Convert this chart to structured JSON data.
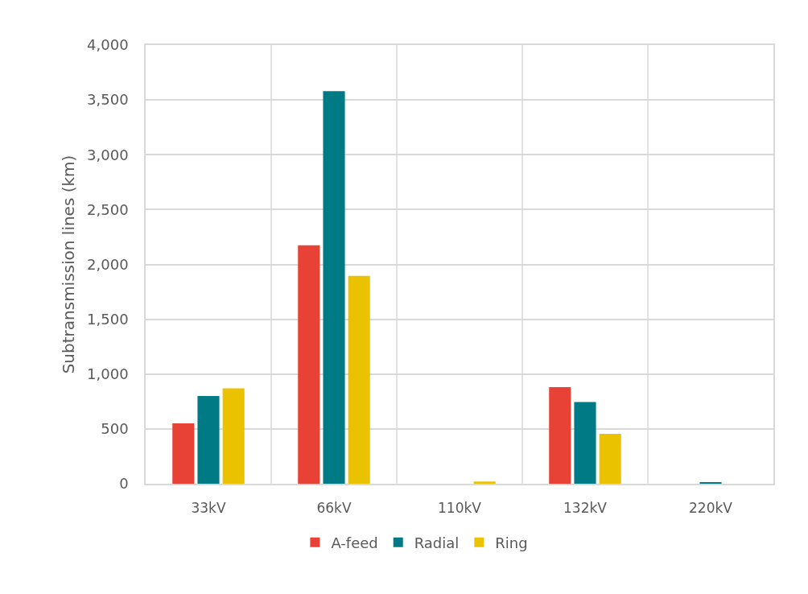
{
  "chart_data": {
    "type": "bar",
    "ylabel": "Subtransmission lines (km)",
    "categories": [
      "33kV",
      "66kV",
      "110kV",
      "132kV",
      "220kV"
    ],
    "series": [
      {
        "name": "A-feed",
        "color": "#e84136",
        "values": [
          550,
          2175,
          null,
          880,
          null
        ]
      },
      {
        "name": "Radial",
        "color": "#007b86",
        "values": [
          800,
          3580,
          null,
          745,
          15
        ]
      },
      {
        "name": "Ring",
        "color": "#ebc200",
        "values": [
          870,
          1895,
          20,
          455,
          null
        ]
      }
    ],
    "ylim": [
      0,
      4000
    ],
    "yticks": [
      0,
      500,
      {
        "value": 1000,
        "label": "1,000"
      },
      {
        "value": 1500,
        "label": "1,500"
      },
      {
        "value": 2000,
        "label": "2,000"
      },
      {
        "value": 2500,
        "label": "2,500"
      },
      {
        "value": 3000,
        "label": "3,000"
      },
      {
        "value": 3500,
        "label": "3,500"
      },
      {
        "value": 4000,
        "label": "4,000"
      }
    ],
    "grid": true,
    "legend": "bottom"
  }
}
